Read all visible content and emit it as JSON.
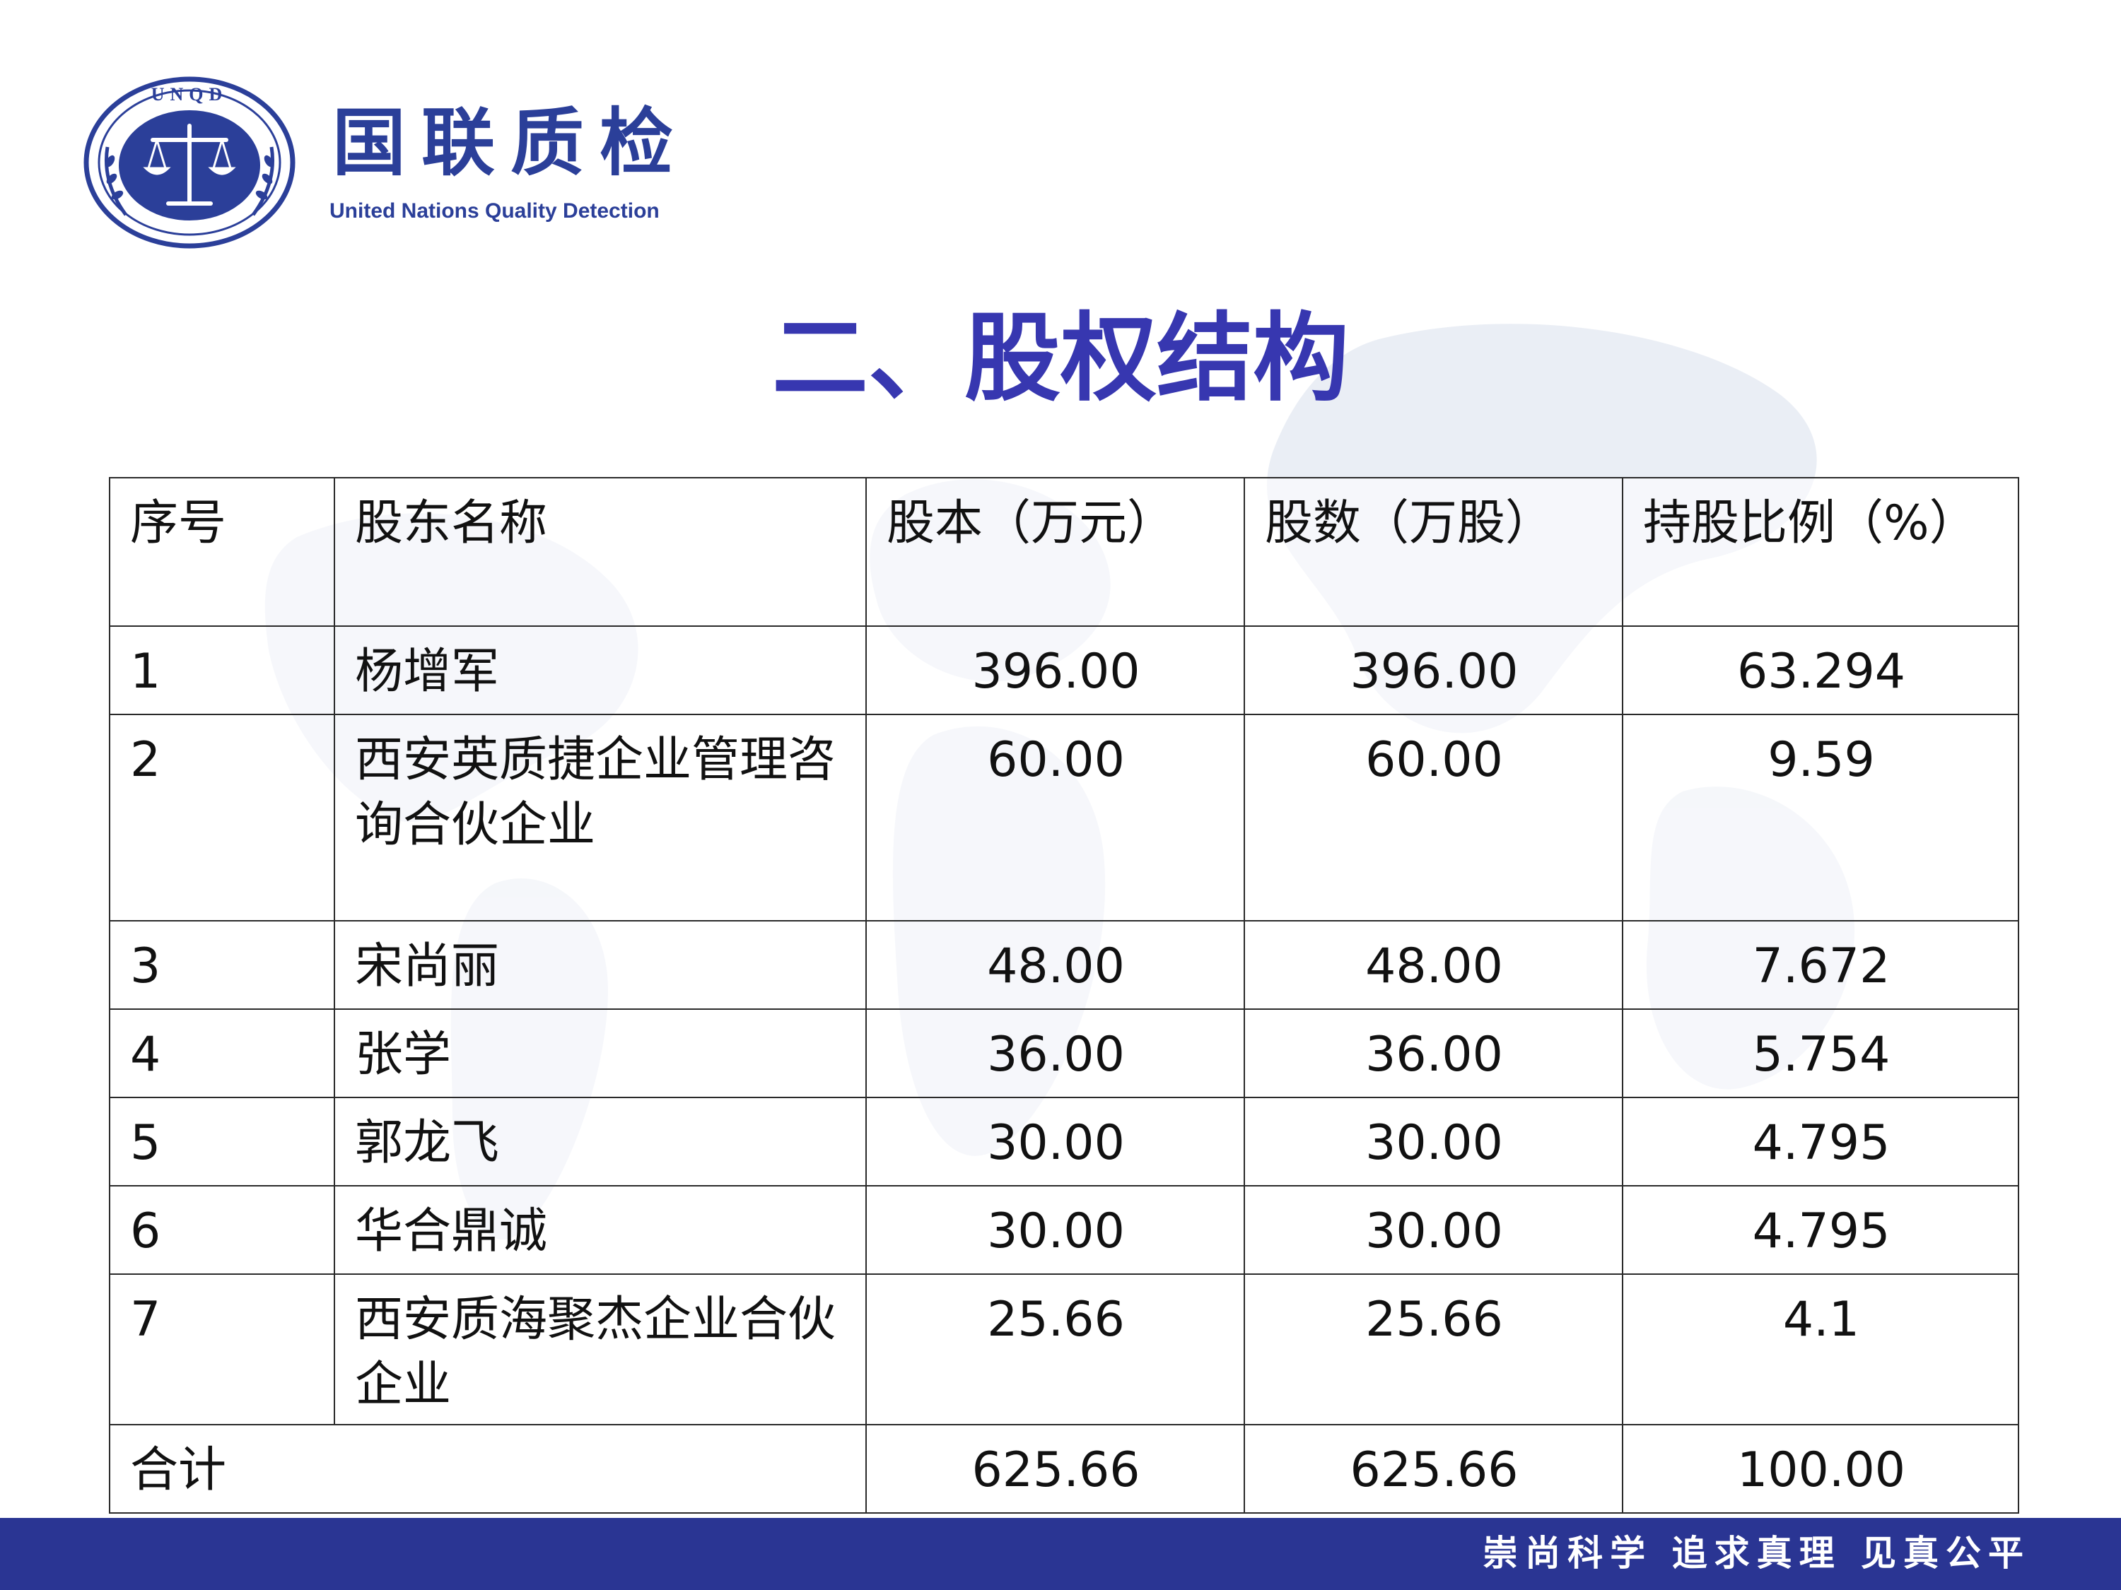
{
  "brand": {
    "logo_text": "UNQD",
    "name_cn": "国联质检",
    "name_en": "United Nations Quality Detection"
  },
  "page": {
    "title": "二、股权结构"
  },
  "table": {
    "headers": [
      "序号",
      "股东名称",
      "股本（万元）",
      "股数（万股）",
      "持股比例（%）"
    ],
    "rows": [
      [
        "1",
        "杨增军",
        "396.00",
        "396.00",
        "63.294"
      ],
      [
        "2",
        "西安英质捷企业管理咨询合伙企业",
        "60.00",
        "60.00",
        "9.59"
      ],
      [
        "3",
        "宋尚丽",
        "48.00",
        "48.00",
        "7.672"
      ],
      [
        "4",
        "张学",
        "36.00",
        "36.00",
        "5.754"
      ],
      [
        "5",
        "郭龙飞",
        "30.00",
        "30.00",
        "4.795"
      ],
      [
        "6",
        "华合鼎诚",
        "30.00",
        "30.00",
        "4.795"
      ],
      [
        "7",
        "西安质海聚杰企业合伙企业",
        "25.66",
        "25.66",
        "4.1"
      ]
    ],
    "total": {
      "label": "合计",
      "capital": "625.66",
      "shares": "625.66",
      "ratio": "100.00"
    }
  },
  "footer": {
    "slogan": "崇尚科学 追求真理 见真公平"
  },
  "colors": {
    "brand_blue": "#2b3f99",
    "title_blue": "#3737b0",
    "footer_bar": "#2a3593"
  },
  "icons": {
    "logo": "scales-of-justice-emblem"
  }
}
